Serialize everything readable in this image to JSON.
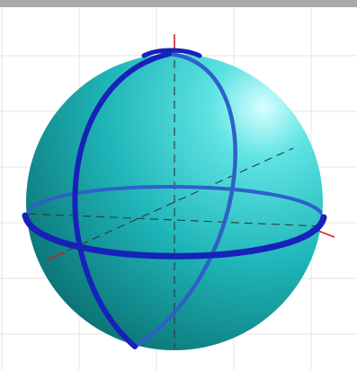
{
  "colors": {
    "top_bar": "#a9a9a9",
    "background": "#ffffff",
    "grid": "#e6e6e6",
    "sphere_highlight": "#d8ffff",
    "sphere_light": "#5fe3e3",
    "sphere_mid": "#1fb5b8",
    "sphere_dark": "#0a6e70",
    "circle_front": "#1622b8",
    "circle_back": "#2c62c8",
    "axis_line": "#2a3a3a",
    "axis_tip": "#cc2222"
  },
  "icons": {
    "sphere": "bloch-sphere-icon"
  }
}
